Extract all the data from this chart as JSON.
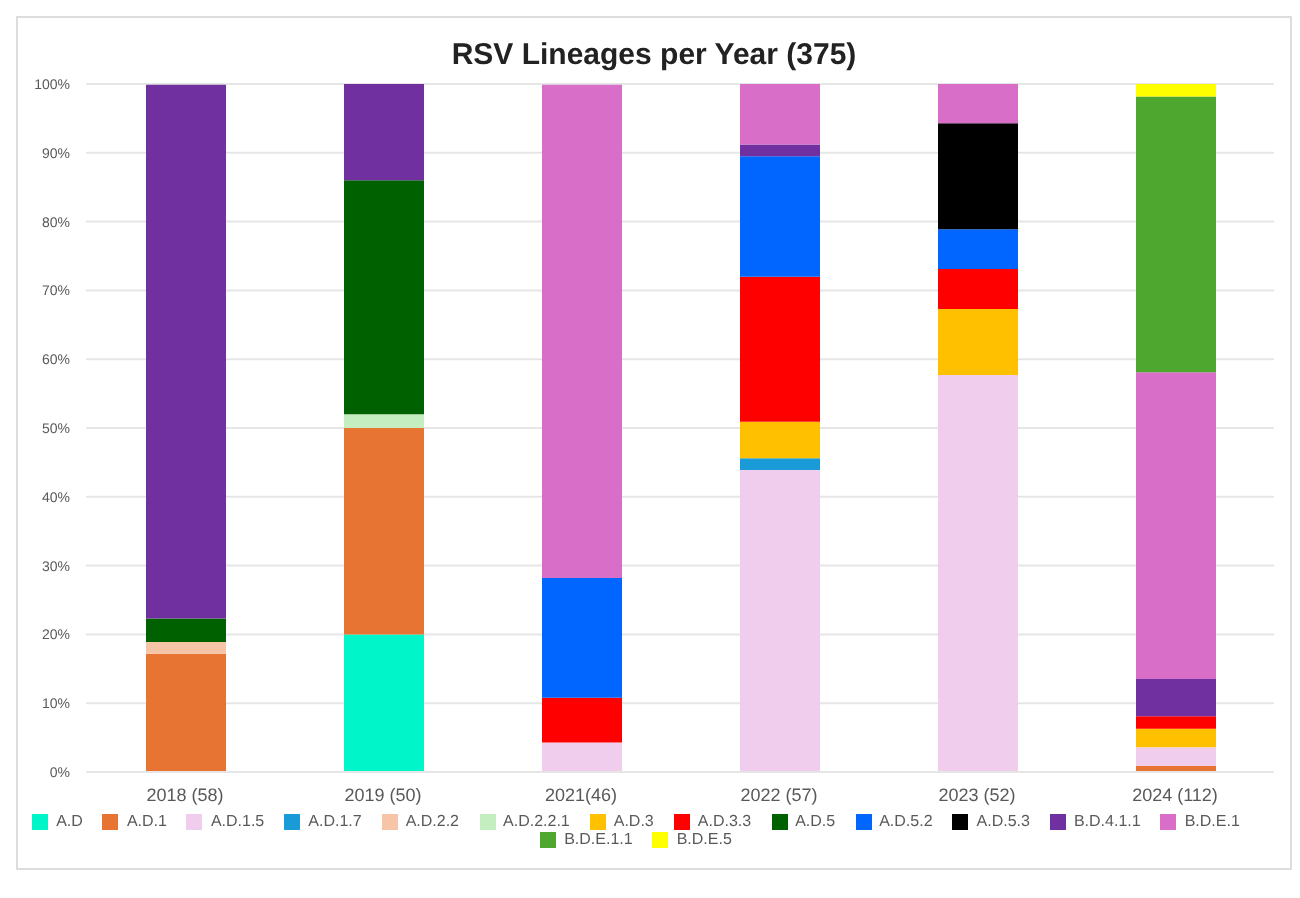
{
  "chart_data": {
    "type": "bar",
    "title": "RSV Lineages per Year (375)",
    "stacked": true,
    "categories": [
      "2018 (58)",
      "2019 (50)",
      "2021(46)",
      "2022 (57)",
      "2023 (52)",
      "2024 (112)"
    ],
    "series": [
      {
        "name": "A.D",
        "color": "#00f5c8",
        "values": [
          null,
          20,
          null,
          null,
          null,
          null
        ]
      },
      {
        "name": "A.D.1",
        "color": "#e87434",
        "values": [
          17.2,
          30,
          null,
          null,
          null,
          0.9
        ]
      },
      {
        "name": "A.D.1.5",
        "color": "#f0cdec",
        "values": [
          null,
          null,
          4.3,
          43.9,
          57.7,
          2.7
        ]
      },
      {
        "name": "A.D.1.7",
        "color": "#1a9ad6",
        "values": [
          null,
          null,
          null,
          1.7,
          null,
          null
        ]
      },
      {
        "name": "A.D.2.2",
        "color": "#f6c4a6",
        "values": [
          1.7,
          null,
          null,
          null,
          null,
          null
        ]
      },
      {
        "name": "A.D.2.2.1",
        "color": "#c5eec0",
        "values": [
          null,
          2,
          null,
          null,
          null,
          null
        ]
      },
      {
        "name": "A.D.3",
        "color": "#ffc000",
        "values": [
          null,
          null,
          null,
          5.3,
          9.6,
          2.7
        ]
      },
      {
        "name": "A.D.3.3",
        "color": "#ff0000",
        "values": [
          null,
          null,
          6.5,
          21.1,
          5.8,
          1.8
        ]
      },
      {
        "name": "A.D.5",
        "color": "#006100",
        "values": [
          3.4,
          34,
          null,
          null,
          null,
          null
        ]
      },
      {
        "name": "A.D.5.2",
        "color": "#0066ff",
        "values": [
          null,
          null,
          17.4,
          17.5,
          5.8,
          null
        ]
      },
      {
        "name": "A.D.5.3",
        "color": "#000000",
        "values": [
          null,
          null,
          null,
          null,
          15.4,
          null
        ]
      },
      {
        "name": "B.D.4.1.1",
        "color": "#7030a0",
        "values": [
          77.6,
          14,
          null,
          1.7,
          null,
          5.4
        ]
      },
      {
        "name": "B.D.E.1",
        "color": "#d86ec8",
        "values": [
          null,
          null,
          71.7,
          8.8,
          5.7,
          44.6
        ]
      },
      {
        "name": "B.D.E.1.1",
        "color": "#4ea72e",
        "values": [
          null,
          null,
          null,
          null,
          null,
          40.1
        ]
      },
      {
        "name": "B.D.E.5",
        "color": "#ffff00",
        "values": [
          null,
          null,
          null,
          null,
          null,
          1.8
        ]
      }
    ],
    "ylim": [
      0,
      100
    ],
    "yticks": [
      {
        "value": 0,
        "label": "0%"
      },
      {
        "value": 10,
        "label": "10%"
      },
      {
        "value": 20,
        "label": "20%"
      },
      {
        "value": 30,
        "label": "30%"
      },
      {
        "value": 40,
        "label": "40%"
      },
      {
        "value": 50,
        "label": "50%"
      },
      {
        "value": 60,
        "label": "60%"
      },
      {
        "value": 70,
        "label": "70%"
      },
      {
        "value": 80,
        "label": "80%"
      },
      {
        "value": 90,
        "label": "90%"
      },
      {
        "value": 100,
        "label": "100%"
      }
    ],
    "grid": "y",
    "legend": "bottom"
  }
}
